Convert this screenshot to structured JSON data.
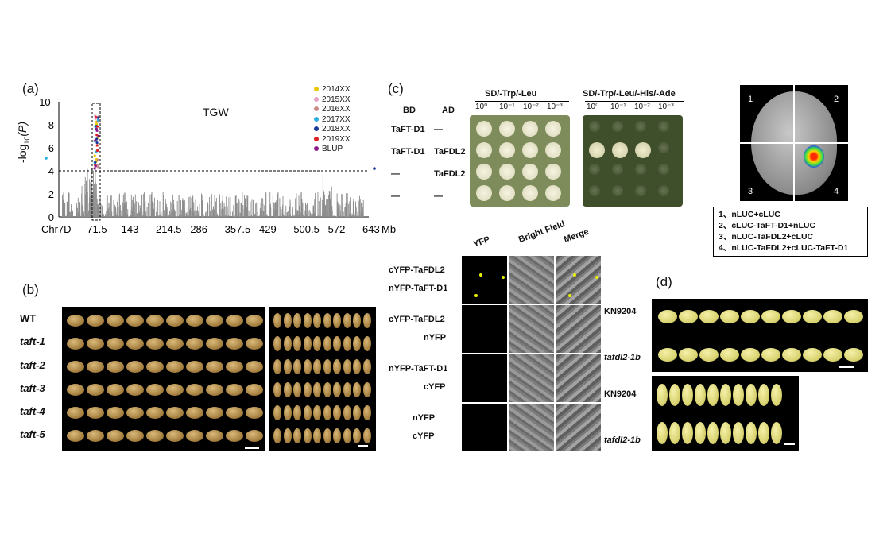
{
  "panel_a": {
    "letter": "(a)",
    "title": "TGW",
    "ylabel_prefix": "-log",
    "ylabel_sub": "10",
    "ylabel_suffix": "(P)",
    "yticks": [
      "0",
      "2",
      "4",
      "6",
      "8",
      "10-"
    ],
    "xticks": [
      "Chr7D",
      "71.5",
      "143",
      "214.5",
      "286",
      "357.5",
      "429",
      "500.5",
      "572",
      "643"
    ],
    "xunit": "Mb",
    "threshold": 4,
    "legend": [
      {
        "label": "2014XX",
        "color": "#e8c800"
      },
      {
        "label": "2015XX",
        "color": "#e6a0c8"
      },
      {
        "label": "2016XX",
        "color": "#c98a8a"
      },
      {
        "label": "2017XX",
        "color": "#2ab0e0"
      },
      {
        "label": "2018XX",
        "color": "#1a3a9a"
      },
      {
        "label": "2019XX",
        "color": "#e02020"
      },
      {
        "label": "BLUP",
        "color": "#8a1a8a"
      }
    ]
  },
  "panel_b": {
    "letter": "(b)",
    "rows": [
      "WT",
      "taft-1",
      "taft-2",
      "taft-3",
      "taft-4",
      "taft-5"
    ]
  },
  "panel_c": {
    "letter": "(c)",
    "col_bd": "BD",
    "col_ad": "AD",
    "media1": "SD/-Trp/-Leu",
    "media2": "SD/-Trp/-Leu/-His/-Ade",
    "dilutions": [
      "10⁰",
      "10⁻¹",
      "10⁻²",
      "10⁻³"
    ],
    "y2h_rows": [
      {
        "bd": "TaFT-D1",
        "ad": "—"
      },
      {
        "bd": "TaFT-D1",
        "ad": "TaFDL2"
      },
      {
        "bd": "—",
        "ad": "TaFDL2"
      },
      {
        "bd": "—",
        "ad": "—"
      }
    ],
    "bifc_cols": [
      "YFP",
      "Bright Field",
      "Merge"
    ],
    "bifc_rows": [
      {
        "l1": "cYFP-TaFDL2",
        "l2": "nYFP-TaFT-D1"
      },
      {
        "l1": "cYFP-TaFDL2",
        "l2": "nYFP"
      },
      {
        "l1": "nYFP-TaFT-D1",
        "l2": "cYFP"
      },
      {
        "l1": "nYFP",
        "l2": "cYFP"
      }
    ],
    "leaf_quadrants": [
      "1",
      "2",
      "3",
      "4"
    ],
    "lci_legend": [
      "1、nLUC+cLUC",
      "2、cLUC-TaFT-D1+nLUC",
      "3、nLUC-TaFDL2+cLUC",
      "4、nLUC-TaFDL2+cLUC-TaFT-D1"
    ]
  },
  "panel_d": {
    "letter": "(d)",
    "top_rows": [
      "KN9204",
      "tafdl2-1b"
    ],
    "bottom_rows": [
      "KN9204",
      "tafdl2-1b"
    ]
  }
}
